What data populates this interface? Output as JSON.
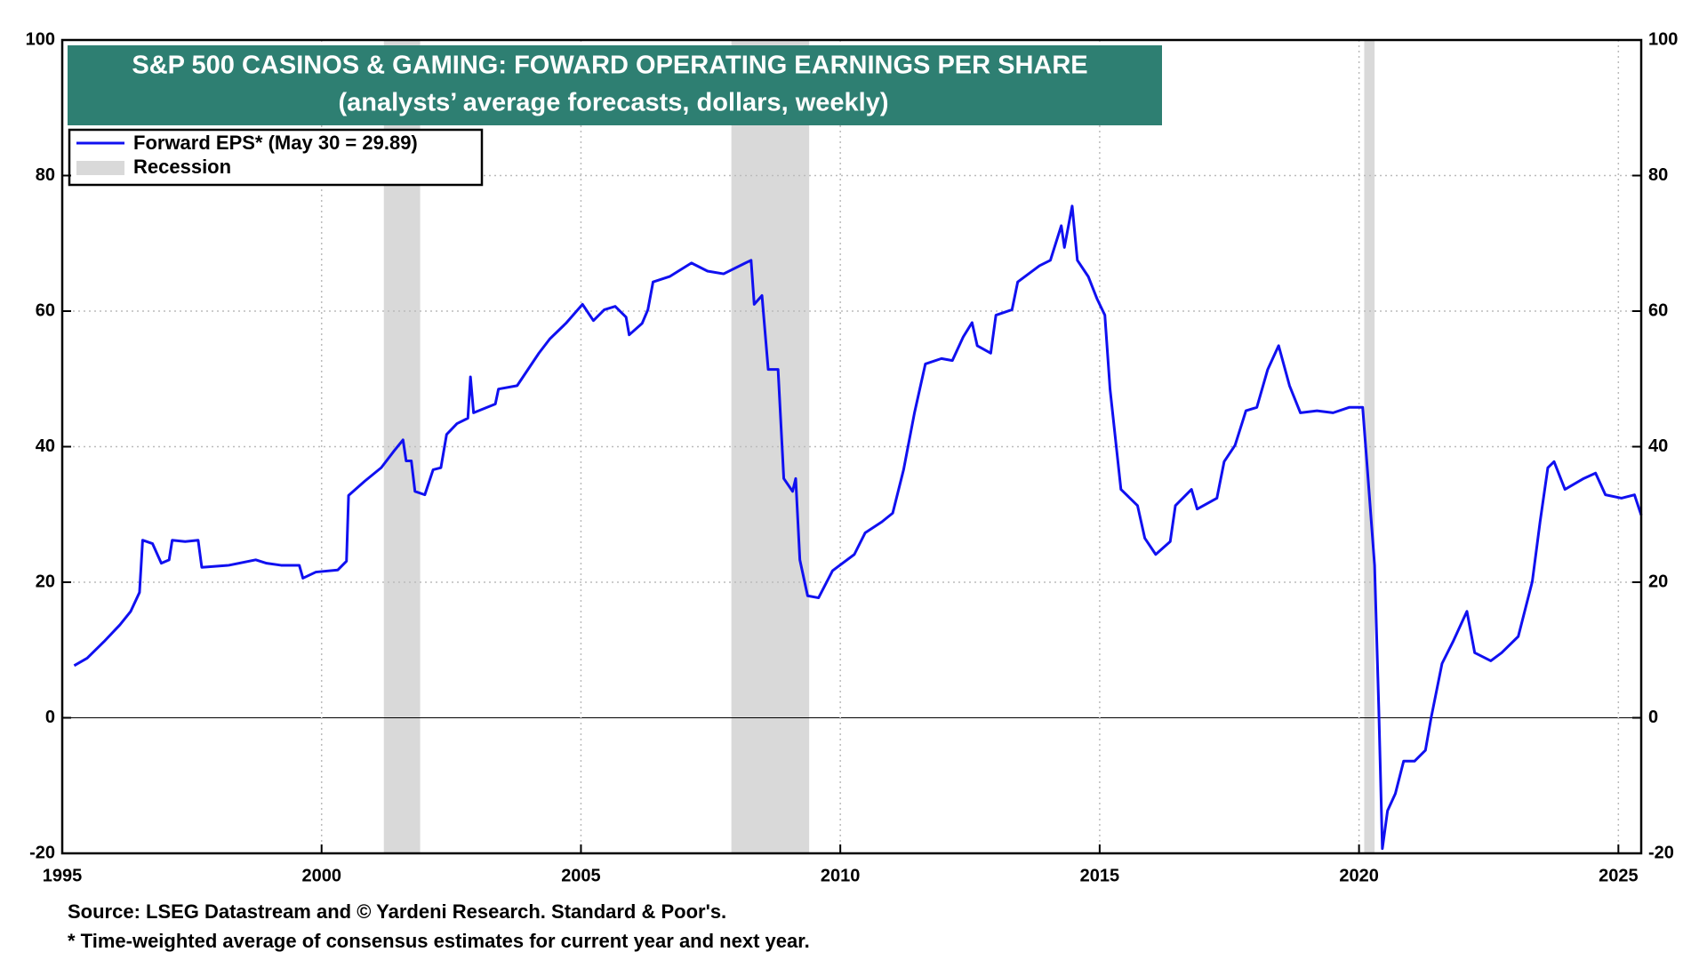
{
  "chart_data": {
    "type": "line",
    "title": "S&P 500 CASINOS & GAMING: FOWARD OPERATING EARNINGS PER SHARE",
    "subtitle": "(analysts’ average forecasts, dollars, weekly)",
    "source": "Source: LSEG Datastream and © Yardeni Research. Standard & Poor's.",
    "footnote": "* Time-weighted average of consensus estimates for current year and next year.",
    "recession_label": "Recession",
    "recession_color": "#d9d9d9",
    "recessions": [
      [
        2001.2,
        2001.9
      ],
      [
        2007.9,
        2009.4
      ],
      [
        2020.1,
        2020.3
      ]
    ],
    "xlim": [
      1995,
      2025.44
    ],
    "xticks": [
      1995,
      2000,
      2005,
      2010,
      2015,
      2020,
      2025
    ],
    "ylim": [
      -20,
      100
    ],
    "yticks": [
      -20,
      0,
      20,
      40,
      60,
      80,
      100
    ],
    "y2lim": [
      -20,
      100
    ],
    "y2ticks": [
      -20,
      0,
      20,
      40,
      60,
      80,
      100
    ],
    "grid": true,
    "legend": "upper left",
    "x": [
      1995.23,
      1995.48,
      1995.8,
      1996.11,
      1996.32,
      1996.49,
      1996.55,
      1996.74,
      1996.91,
      1997.06,
      1997.12,
      1997.37,
      1997.62,
      1997.69,
      1998.21,
      1998.73,
      1998.94,
      1999.22,
      1999.57,
      1999.64,
      1999.89,
      2000.31,
      2000.48,
      2000.52,
      2000.83,
      2001.15,
      2001.4,
      2001.57,
      2001.63,
      2001.73,
      2001.8,
      2001.99,
      2002.15,
      2002.3,
      2002.41,
      2002.61,
      2002.82,
      2002.87,
      2002.93,
      2003.35,
      2003.41,
      2003.77,
      2004.19,
      2004.4,
      2004.71,
      2005.03,
      2005.24,
      2005.45,
      2005.66,
      2005.87,
      2005.93,
      2006.18,
      2006.29,
      2006.39,
      2006.71,
      2007.13,
      2007.44,
      2007.75,
      2008.17,
      2008.28,
      2008.34,
      2008.49,
      2008.61,
      2008.8,
      2008.91,
      2009.08,
      2009.14,
      2009.22,
      2009.37,
      2009.58,
      2009.85,
      2010.27,
      2010.48,
      2010.8,
      2011.01,
      2011.22,
      2011.43,
      2011.64,
      2011.95,
      2012.16,
      2012.37,
      2012.54,
      2012.64,
      2012.9,
      2013.0,
      2013.31,
      2013.42,
      2013.84,
      2014.05,
      2014.26,
      2014.32,
      2014.47,
      2014.57,
      2014.78,
      2014.95,
      2015.1,
      2015.2,
      2015.41,
      2015.73,
      2015.87,
      2016.08,
      2016.36,
      2016.46,
      2016.77,
      2016.88,
      2017.26,
      2017.4,
      2017.61,
      2017.82,
      2018.03,
      2018.24,
      2018.45,
      2018.66,
      2018.87,
      2019.19,
      2019.5,
      2019.81,
      2020.07,
      2020.15,
      2020.3,
      2020.38,
      2020.45,
      2020.55,
      2020.7,
      2020.86,
      2021.07,
      2021.28,
      2021.39,
      2021.6,
      2021.81,
      2022.08,
      2022.23,
      2022.54,
      2022.75,
      2023.07,
      2023.34,
      2023.49,
      2023.64,
      2023.76,
      2023.97,
      2024.33,
      2024.56,
      2024.75,
      2025.06,
      2025.31,
      2025.44
    ],
    "series": [
      {
        "name": "Forward EPS* (May 30 = 29.89)",
        "color": "#1010f0",
        "values": [
          7.7,
          8.8,
          11.2,
          13.7,
          15.7,
          18.5,
          26.2,
          25.7,
          22.8,
          23.3,
          26.2,
          26,
          26.2,
          22.2,
          22.5,
          23.3,
          22.8,
          22.5,
          22.5,
          20.6,
          21.5,
          21.8,
          23.1,
          32.8,
          34.9,
          36.9,
          39.4,
          41,
          37.9,
          37.9,
          33.4,
          32.9,
          36.6,
          36.9,
          41.8,
          43.4,
          44.2,
          50.3,
          45,
          46.3,
          48.5,
          49,
          53.8,
          55.9,
          58.2,
          61,
          58.6,
          60.2,
          60.7,
          59.1,
          56.5,
          58.2,
          60.2,
          64.3,
          65.1,
          67.1,
          65.9,
          65.5,
          67.1,
          67.5,
          61,
          62.3,
          51.4,
          51.4,
          35.3,
          33.4,
          35.3,
          23.3,
          18,
          17.7,
          21.7,
          24.1,
          27.3,
          28.9,
          30.2,
          36.6,
          45,
          52.2,
          53,
          52.7,
          56.2,
          58.3,
          54.9,
          53.8,
          59.4,
          60.2,
          64.3,
          66.7,
          67.5,
          72.6,
          69.4,
          75.5,
          67.5,
          65.1,
          61.8,
          59.4,
          48.5,
          33.7,
          31.3,
          26.5,
          24.1,
          26,
          31.3,
          33.7,
          30.8,
          32.4,
          37.8,
          40.2,
          45.3,
          45.8,
          51.4,
          54.9,
          49,
          45,
          45.3,
          45,
          45.8,
          45.8,
          37.8,
          22.5,
          1.6,
          -19.3,
          -13.7,
          -11.2,
          -6.4,
          -6.4,
          -4.8,
          0,
          8,
          11.2,
          15.7,
          9.6,
          8.4,
          9.6,
          12,
          20.1,
          28.9,
          36.9,
          37.8,
          33.7,
          35.3,
          36.1,
          32.9,
          32.4,
          32.9,
          29.89
        ]
      }
    ]
  }
}
